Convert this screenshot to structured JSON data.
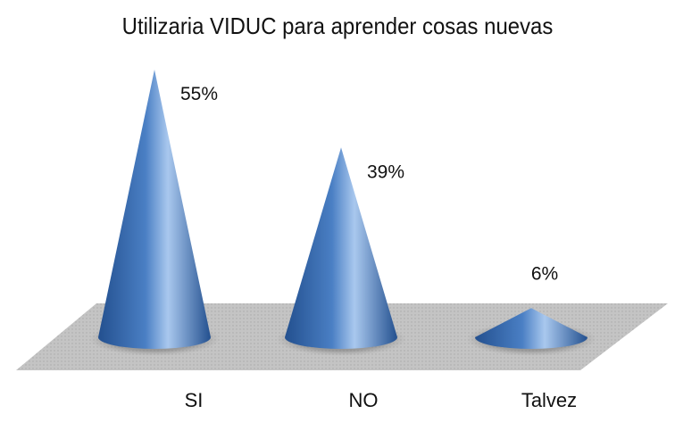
{
  "chart_data": {
    "type": "bar",
    "style": "3d-cone",
    "title": "Utilizaria VIDUC para aprender cosas nuevas",
    "categories": [
      "SI",
      "NO",
      "Talvez"
    ],
    "values": [
      55,
      39,
      6
    ],
    "data_labels": [
      "55%",
      "39%",
      "6%"
    ],
    "unit": "%",
    "ylim": [
      0,
      55
    ],
    "grid": false,
    "legend": "none",
    "colors": {
      "cone": "#4a7fc4",
      "cone_light": "#a9c8ee",
      "cone_dark": "#23508f",
      "floor": "#bfbfbf"
    }
  }
}
